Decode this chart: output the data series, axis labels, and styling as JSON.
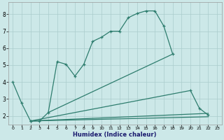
{
  "xlabel": "Humidex (Indice chaleur)",
  "background_color": "#cce8e8",
  "grid_color": "#aacccc",
  "line_color": "#2e7d6e",
  "xlim": [
    -0.5,
    23.5
  ],
  "ylim": [
    1.5,
    8.7
  ],
  "xticks": [
    0,
    1,
    2,
    3,
    4,
    5,
    6,
    7,
    8,
    9,
    10,
    11,
    12,
    13,
    14,
    15,
    16,
    17,
    18,
    19,
    20,
    21,
    22,
    23
  ],
  "yticks": [
    2,
    3,
    4,
    5,
    6,
    7,
    8
  ],
  "line1_x": [
    0,
    1,
    2,
    3,
    4,
    5,
    6,
    7,
    8,
    9,
    10,
    11,
    12,
    13,
    14,
    15,
    16,
    17,
    18
  ],
  "line1_y": [
    4.0,
    2.75,
    1.7,
    1.7,
    2.2,
    5.2,
    5.05,
    4.35,
    5.05,
    6.4,
    6.65,
    7.0,
    7.0,
    7.8,
    8.05,
    8.2,
    8.2,
    7.3,
    5.65
  ],
  "line2_x": [
    1,
    2,
    3,
    4,
    18,
    20,
    21,
    22
  ],
  "line2_y": [
    2.75,
    1.7,
    1.7,
    2.2,
    5.65,
    3.5,
    2.45,
    2.05
  ],
  "line3_x": [
    2,
    3,
    20,
    21,
    22
  ],
  "line3_y": [
    1.7,
    1.7,
    3.5,
    2.45,
    2.05
  ],
  "line4_x": [
    2,
    22
  ],
  "line4_y": [
    1.7,
    2.05
  ],
  "line5_x": [
    2,
    22
  ],
  "line5_y": [
    1.7,
    2.0
  ]
}
